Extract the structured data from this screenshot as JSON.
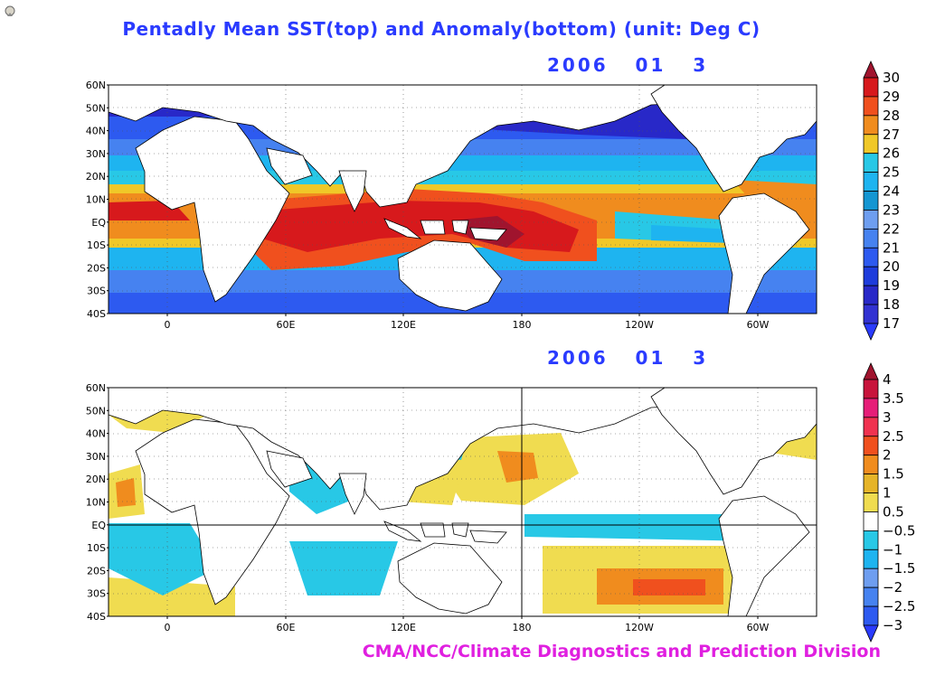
{
  "title": "Pentadly Mean SST(top) and Anomaly(bottom) (unit: Deg C)",
  "credit": "CMA/NCC/Climate Diagnostics and Prediction Division",
  "logo_icon": "globe-logo-icon",
  "top_panel": {
    "date": "2006   01   3",
    "lat_labels": [
      "60N",
      "50N",
      "40N",
      "30N",
      "20N",
      "10N",
      "EQ",
      "10S",
      "20S",
      "30S",
      "40S"
    ],
    "lon_labels": [
      "0",
      "60E",
      "120E",
      "180",
      "120W",
      "60W"
    ],
    "colorbar": {
      "levels": [
        "30",
        "29",
        "28",
        "27",
        "26",
        "25",
        "24",
        "23",
        "22",
        "21",
        "20",
        "19",
        "18",
        "17"
      ],
      "colors": [
        "#a0142e",
        "#d7191c",
        "#f0501e",
        "#f08c1e",
        "#f0c828",
        "#28c8e6",
        "#1eb4f0",
        "#1496d2",
        "#6e9ef0",
        "#4682f0",
        "#2d5af0",
        "#1e3cdc",
        "#2828c8",
        "#3232d2",
        "#2a3bff"
      ]
    }
  },
  "bottom_panel": {
    "date": "2006   01   3",
    "lat_labels": [
      "60N",
      "50N",
      "40N",
      "30N",
      "20N",
      "10N",
      "EQ",
      "10S",
      "20S",
      "30S",
      "40S"
    ],
    "lon_labels": [
      "0",
      "60E",
      "120E",
      "180",
      "120W",
      "60W"
    ],
    "colorbar": {
      "levels": [
        "4",
        "3.5",
        "3",
        "2.5",
        "2",
        "1.5",
        "1",
        "0.5",
        "−0.5",
        "−1",
        "−1.5",
        "−2",
        "−2.5",
        "−3"
      ],
      "colors": [
        "#a0142e",
        "#c8143c",
        "#e61e78",
        "#f03250",
        "#f0501e",
        "#f08c1e",
        "#e6b428",
        "#f0dc50",
        "#ffffff",
        "#28c8e6",
        "#1eb4f0",
        "#6e9ef0",
        "#4682f0",
        "#2d5af0",
        "#2a3bff"
      ]
    }
  }
}
